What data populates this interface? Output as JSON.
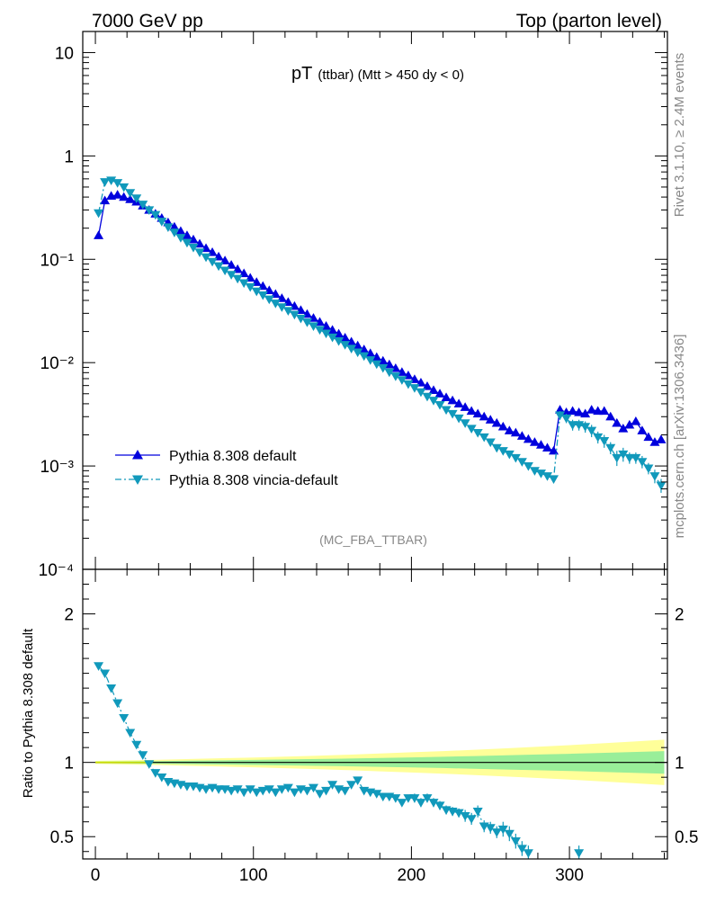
{
  "header": {
    "left": "7000 GeV pp",
    "right": "Top (parton level)"
  },
  "title": {
    "main": "pT",
    "sub": "(ttbar) (Mtt > 450 dy < 0)"
  },
  "side_labels": {
    "rivet": "Rivet 3.1.10, ≥ 2.4M events",
    "mcplots": "mcplots.cern.ch [arXiv:1306.3436]"
  },
  "analysis_tag": "(MC_FBA_TTBAR)",
  "ratio_ylabel": "Ratio to Pythia 8.308 default",
  "colors": {
    "default": "#0000dd",
    "vincia": "#1199bb",
    "band_inner": "#99ee99",
    "band_outer": "#ffff99"
  },
  "chart_data": [
    {
      "type": "line",
      "scale": "log",
      "xlim": [
        -8,
        362
      ],
      "ylim": [
        0.0001,
        16
      ],
      "y_tick_labels": [
        "10",
        "1",
        "10⁻¹",
        "10⁻²",
        "10⁻³",
        "10⁻⁴"
      ],
      "legend_position": "bottom-left",
      "series": [
        {
          "name": "Pythia 8.308 default",
          "marker": "triangle-up",
          "x": [
            2,
            6,
            10,
            14,
            18,
            22,
            26,
            30,
            34,
            38,
            42,
            46,
            50,
            54,
            58,
            62,
            66,
            70,
            74,
            78,
            82,
            86,
            90,
            94,
            98,
            102,
            106,
            110,
            114,
            118,
            122,
            126,
            130,
            134,
            138,
            142,
            146,
            150,
            154,
            158,
            162,
            166,
            170,
            174,
            178,
            182,
            186,
            190,
            194,
            198,
            202,
            206,
            210,
            214,
            218,
            222,
            226,
            230,
            234,
            238,
            242,
            246,
            250,
            254,
            258,
            262,
            266,
            270,
            274,
            278,
            282,
            286,
            290,
            294,
            298,
            302,
            306,
            310,
            314,
            318,
            322,
            326,
            330,
            334,
            338,
            342,
            346,
            350,
            354,
            358
          ],
          "y": [
            0.17,
            0.37,
            0.41,
            0.42,
            0.4,
            0.38,
            0.36,
            0.33,
            0.3,
            0.275,
            0.25,
            0.227,
            0.206,
            0.187,
            0.17,
            0.155,
            0.141,
            0.128,
            0.117,
            0.106,
            0.097,
            0.088,
            0.08,
            0.073,
            0.066,
            0.06,
            0.055,
            0.05,
            0.046,
            0.042,
            0.0385,
            0.0352,
            0.0322,
            0.0295,
            0.027,
            0.0247,
            0.0226,
            0.0207,
            0.019,
            0.0174,
            0.0159,
            0.0146,
            0.0134,
            0.0123,
            0.0113,
            0.0104,
            0.0096,
            0.0088,
            0.0081,
            0.0075,
            0.0069,
            0.0064,
            0.0059,
            0.0054,
            0.005,
            0.0046,
            0.0043,
            0.004,
            0.0037,
            0.0034,
            0.0032,
            0.003,
            0.0028,
            0.0026,
            0.0024,
            0.0022,
            0.0021,
            0.00195,
            0.00182,
            0.0017,
            0.0016,
            0.0015,
            0.0014,
            0.0035,
            0.0033,
            0.0034,
            0.0033,
            0.0032,
            0.0035,
            0.0034,
            0.0034,
            0.003,
            0.0026,
            0.0023,
            0.0025,
            0.0027,
            0.0022,
            0.0019,
            0.0017,
            0.0018
          ]
        },
        {
          "name": "Pythia 8.308 vincia-default",
          "marker": "triangle-down",
          "x": [
            2,
            6,
            10,
            14,
            18,
            22,
            26,
            30,
            34,
            38,
            42,
            46,
            50,
            54,
            58,
            62,
            66,
            70,
            74,
            78,
            82,
            86,
            90,
            94,
            98,
            102,
            106,
            110,
            114,
            118,
            122,
            126,
            130,
            134,
            138,
            142,
            146,
            150,
            154,
            158,
            162,
            166,
            170,
            174,
            178,
            182,
            186,
            190,
            194,
            198,
            202,
            206,
            210,
            214,
            218,
            222,
            226,
            230,
            234,
            238,
            242,
            246,
            250,
            254,
            258,
            262,
            266,
            270,
            274,
            278,
            282,
            286,
            290,
            294,
            298,
            302,
            306,
            310,
            314,
            318,
            322,
            326,
            330,
            334,
            338,
            342,
            346,
            350,
            354,
            358
          ],
          "y": [
            0.28,
            0.56,
            0.58,
            0.55,
            0.5,
            0.44,
            0.39,
            0.34,
            0.3,
            0.27,
            0.232,
            0.205,
            0.182,
            0.162,
            0.145,
            0.13,
            0.117,
            0.105,
            0.095,
            0.086,
            0.078,
            0.071,
            0.065,
            0.059,
            0.054,
            0.049,
            0.045,
            0.041,
            0.0375,
            0.0345,
            0.0318,
            0.0292,
            0.0268,
            0.0246,
            0.0226,
            0.0208,
            0.0192,
            0.0176,
            0.0162,
            0.0149,
            0.0137,
            0.0126,
            0.0116,
            0.0106,
            0.0097,
            0.0089,
            0.0081,
            0.0074,
            0.0068,
            0.0062,
            0.0057,
            0.0052,
            0.0047,
            0.0043,
            0.0039,
            0.0035,
            0.0032,
            0.0029,
            0.0026,
            0.0023,
            0.0021,
            0.0019,
            0.0017,
            0.0015,
            0.0014,
            0.0013,
            0.0012,
            0.0011,
            0.001,
            0.0009,
            0.00085,
            0.0008,
            0.00075,
            0.0031,
            0.0029,
            0.0025,
            0.0025,
            0.0024,
            0.0022,
            0.0019,
            0.00175,
            0.0015,
            0.0012,
            0.0013,
            0.0012,
            0.0012,
            0.0011,
            0.00095,
            0.0008,
            0.00065
          ],
          "error": [
            0,
            0,
            0,
            0,
            0,
            0,
            0,
            0,
            0,
            0,
            0,
            0,
            0,
            0,
            0,
            0,
            0,
            0,
            0,
            0,
            0,
            0,
            0,
            0,
            0,
            0,
            0,
            0,
            0,
            0,
            0,
            0,
            0,
            0,
            0,
            0,
            0,
            0,
            0,
            0,
            0,
            0,
            0,
            0,
            0,
            0,
            0,
            0,
            0,
            0,
            0,
            0,
            0,
            0,
            0,
            0,
            0,
            0,
            0,
            0,
            0,
            0,
            0,
            0,
            0,
            0,
            0,
            0,
            0,
            0,
            0,
            0,
            0,
            0.0003,
            0.0003,
            0.0003,
            0.0003,
            0.0003,
            0.0003,
            0.00025,
            0.00025,
            0.0002,
            0.0002,
            0.0002,
            0.00015,
            0.00015,
            0.00015,
            0.00012,
            0.00012,
            0.0001
          ]
        }
      ]
    },
    {
      "type": "line",
      "xlim": [
        -8,
        362
      ],
      "ylim": [
        0.35,
        2.3
      ],
      "x_tick_labels": [
        "0",
        "100",
        "200",
        "300"
      ],
      "y_tick_labels": [
        "2",
        "1",
        "0.5"
      ],
      "reference_line": 1,
      "bands": {
        "x": [
          0,
          20,
          40,
          60,
          80,
          100,
          120,
          140,
          160,
          180,
          200,
          220,
          240,
          260,
          280,
          300,
          320,
          340,
          360
        ],
        "inner": [
          0.005,
          0.007,
          0.009,
          0.012,
          0.014,
          0.017,
          0.02,
          0.023,
          0.026,
          0.03,
          0.034,
          0.038,
          0.043,
          0.048,
          0.053,
          0.058,
          0.064,
          0.07,
          0.076
        ],
        "outer": [
          0.01,
          0.014,
          0.018,
          0.023,
          0.028,
          0.033,
          0.039,
          0.045,
          0.052,
          0.06,
          0.068,
          0.076,
          0.085,
          0.095,
          0.105,
          0.116,
          0.128,
          0.14,
          0.153
        ]
      },
      "series": [
        {
          "name": "Pythia 8.308 vincia-default",
          "x": [
            2,
            6,
            10,
            14,
            18,
            22,
            26,
            30,
            34,
            38,
            42,
            46,
            50,
            54,
            58,
            62,
            66,
            70,
            74,
            78,
            82,
            86,
            90,
            94,
            98,
            102,
            106,
            110,
            114,
            118,
            122,
            126,
            130,
            134,
            138,
            142,
            146,
            150,
            154,
            158,
            162,
            166,
            170,
            174,
            178,
            182,
            186,
            190,
            194,
            198,
            202,
            206,
            210,
            214,
            218,
            222,
            226,
            230,
            234,
            238,
            242,
            246,
            250,
            254,
            258,
            262,
            266,
            270,
            274,
            306
          ],
          "y": [
            1.65,
            1.6,
            1.5,
            1.4,
            1.3,
            1.2,
            1.12,
            1.05,
            0.99,
            0.93,
            0.9,
            0.87,
            0.86,
            0.85,
            0.84,
            0.84,
            0.83,
            0.82,
            0.83,
            0.82,
            0.82,
            0.81,
            0.82,
            0.8,
            0.82,
            0.8,
            0.81,
            0.82,
            0.8,
            0.82,
            0.83,
            0.8,
            0.82,
            0.81,
            0.83,
            0.79,
            0.81,
            0.85,
            0.82,
            0.81,
            0.85,
            0.88,
            0.81,
            0.8,
            0.79,
            0.77,
            0.77,
            0.76,
            0.73,
            0.76,
            0.76,
            0.73,
            0.76,
            0.73,
            0.71,
            0.68,
            0.67,
            0.66,
            0.64,
            0.62,
            0.67,
            0.57,
            0.56,
            0.53,
            0.55,
            0.52,
            0.47,
            0.42,
            0.39,
            0.39
          ],
          "error": [
            0.02,
            0.02,
            0.02,
            0.02,
            0.01,
            0.01,
            0.01,
            0.01,
            0.01,
            0.01,
            0.01,
            0.01,
            0.01,
            0.01,
            0.01,
            0.01,
            0.01,
            0.01,
            0.01,
            0.01,
            0.01,
            0.01,
            0.01,
            0.01,
            0.01,
            0.01,
            0.01,
            0.01,
            0.01,
            0.01,
            0.01,
            0.01,
            0.01,
            0.01,
            0.02,
            0.02,
            0.02,
            0.02,
            0.02,
            0.02,
            0.02,
            0.02,
            0.02,
            0.02,
            0.02,
            0.02,
            0.02,
            0.02,
            0.02,
            0.02,
            0.03,
            0.03,
            0.03,
            0.03,
            0.03,
            0.03,
            0.03,
            0.03,
            0.04,
            0.04,
            0.04,
            0.04,
            0.04,
            0.04,
            0.05,
            0.05,
            0.05,
            0.05,
            0.05,
            0.05
          ]
        }
      ]
    }
  ]
}
